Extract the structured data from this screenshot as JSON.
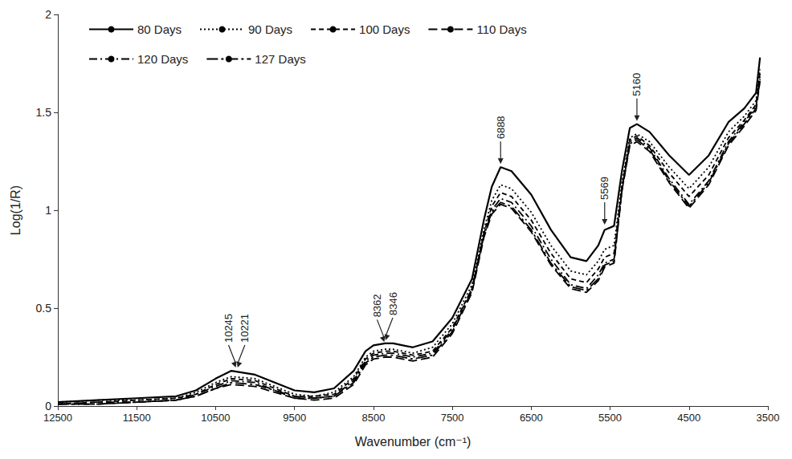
{
  "chart_data": {
    "type": "line",
    "x_label": "Wavenumber (cm⁻¹)",
    "y_label": "Log(1/R)",
    "x": [
      12500,
      12000,
      11500,
      11000,
      10750,
      10500,
      10300,
      10000,
      9750,
      9500,
      9250,
      9000,
      8750,
      8600,
      8500,
      8350,
      8250,
      8000,
      7750,
      7500,
      7250,
      7100,
      7000,
      6888,
      6750,
      6500,
      6250,
      6000,
      5800,
      5650,
      5569,
      5450,
      5350,
      5250,
      5160,
      5000,
      4750,
      4500,
      4250,
      4000,
      3800,
      3650,
      3600
    ],
    "series": [
      {
        "name": "80 Days",
        "color": "#000000",
        "line_style": "solid",
        "values": [
          0.02,
          0.03,
          0.04,
          0.05,
          0.08,
          0.14,
          0.18,
          0.16,
          0.12,
          0.08,
          0.07,
          0.09,
          0.18,
          0.28,
          0.31,
          0.32,
          0.32,
          0.3,
          0.33,
          0.45,
          0.65,
          0.95,
          1.12,
          1.22,
          1.2,
          1.08,
          0.9,
          0.76,
          0.74,
          0.82,
          0.9,
          0.92,
          1.2,
          1.42,
          1.44,
          1.4,
          1.28,
          1.18,
          1.28,
          1.45,
          1.52,
          1.6,
          1.78
        ]
      },
      {
        "name": "90 Days",
        "color": "#000000",
        "line_style": "dotted",
        "values": [
          0.02,
          0.03,
          0.03,
          0.04,
          0.07,
          0.12,
          0.15,
          0.14,
          0.1,
          0.06,
          0.05,
          0.07,
          0.15,
          0.25,
          0.28,
          0.29,
          0.29,
          0.27,
          0.3,
          0.42,
          0.62,
          0.9,
          1.05,
          1.13,
          1.11,
          0.99,
          0.82,
          0.69,
          0.67,
          0.74,
          0.8,
          0.82,
          1.14,
          1.37,
          1.39,
          1.35,
          1.22,
          1.11,
          1.22,
          1.4,
          1.48,
          1.56,
          1.72
        ]
      },
      {
        "name": "100 Days",
        "color": "#000000",
        "line_style": "dashed",
        "values": [
          0.01,
          0.02,
          0.03,
          0.04,
          0.06,
          0.11,
          0.14,
          0.13,
          0.09,
          0.05,
          0.05,
          0.06,
          0.14,
          0.24,
          0.27,
          0.28,
          0.28,
          0.26,
          0.28,
          0.4,
          0.6,
          0.88,
          1.02,
          1.09,
          1.07,
          0.95,
          0.78,
          0.65,
          0.63,
          0.7,
          0.76,
          0.78,
          1.12,
          1.36,
          1.38,
          1.33,
          1.19,
          1.07,
          1.18,
          1.37,
          1.46,
          1.54,
          1.7
        ]
      },
      {
        "name": "110 Days",
        "color": "#000000",
        "line_style": "long-dashed",
        "values": [
          0.01,
          0.01,
          0.02,
          0.03,
          0.05,
          0.09,
          0.11,
          0.1,
          0.07,
          0.04,
          0.03,
          0.04,
          0.11,
          0.21,
          0.24,
          0.25,
          0.25,
          0.23,
          0.25,
          0.37,
          0.58,
          0.86,
          0.98,
          1.03,
          1.01,
          0.89,
          0.72,
          0.6,
          0.58,
          0.64,
          0.71,
          0.73,
          1.1,
          1.33,
          1.35,
          1.3,
          1.14,
          1.01,
          1.13,
          1.33,
          1.43,
          1.51,
          1.66
        ]
      },
      {
        "name": "120 Days",
        "color": "#000000",
        "line_style": "dash-dot",
        "values": [
          0.01,
          0.02,
          0.02,
          0.03,
          0.06,
          0.1,
          0.13,
          0.12,
          0.08,
          0.05,
          0.04,
          0.05,
          0.13,
          0.23,
          0.26,
          0.27,
          0.27,
          0.25,
          0.27,
          0.39,
          0.6,
          0.88,
          1.0,
          1.06,
          1.04,
          0.92,
          0.75,
          0.62,
          0.6,
          0.67,
          0.73,
          0.75,
          1.11,
          1.35,
          1.37,
          1.32,
          1.16,
          1.03,
          1.15,
          1.35,
          1.45,
          1.53,
          1.68
        ]
      },
      {
        "name": "127 Days",
        "color": "#000000",
        "line_style": "long-dash-dot",
        "values": [
          0.01,
          0.01,
          0.02,
          0.03,
          0.05,
          0.09,
          0.12,
          0.11,
          0.08,
          0.04,
          0.04,
          0.05,
          0.12,
          0.22,
          0.25,
          0.26,
          0.26,
          0.24,
          0.26,
          0.38,
          0.59,
          0.87,
          0.99,
          1.04,
          1.02,
          0.9,
          0.73,
          0.61,
          0.59,
          0.65,
          0.72,
          0.74,
          1.1,
          1.34,
          1.36,
          1.31,
          1.15,
          1.02,
          1.14,
          1.34,
          1.44,
          1.52,
          1.67
        ]
      }
    ],
    "annotations": [
      {
        "text": "10245",
        "x": 10245,
        "y": 0.18
      },
      {
        "text": "10221",
        "x": 10221,
        "y": 0.18
      },
      {
        "text": "8362",
        "x": 8362,
        "y": 0.31
      },
      {
        "text": "8346",
        "x": 8346,
        "y": 0.32
      },
      {
        "text": "6888",
        "x": 6888,
        "y": 1.22
      },
      {
        "text": "5569",
        "x": 5569,
        "y": 0.91
      },
      {
        "text": "5160",
        "x": 5160,
        "y": 1.44
      }
    ],
    "xlim": [
      12500,
      3500
    ],
    "xticks": [
      12500,
      11500,
      10500,
      9500,
      8500,
      7500,
      6500,
      5500,
      4500,
      3500
    ],
    "ylim": [
      0,
      2
    ],
    "yticks": [
      0,
      0.5,
      1,
      1.5,
      2
    ],
    "grid": false,
    "legend": "top-left"
  }
}
